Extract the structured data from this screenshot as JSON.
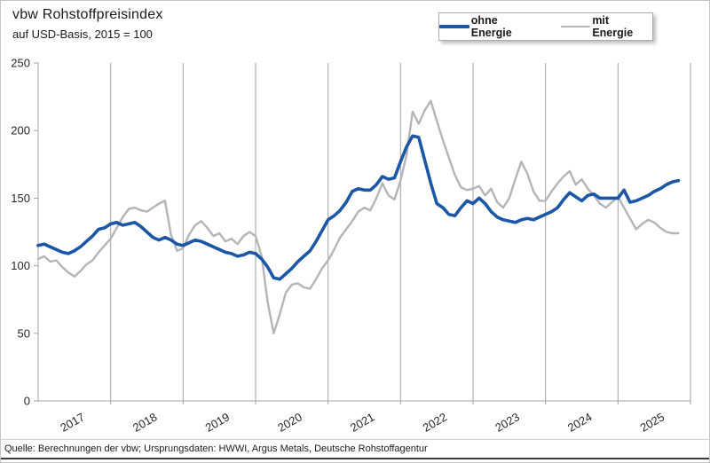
{
  "header": {
    "title": "vbw Rohstoffpreisindex",
    "subtitle": "auf USD-Basis, 2015 = 100"
  },
  "footer": {
    "source": "Quelle: Berechnungen der vbw; Ursprungsdaten: HWWI, Argus Metals, Deutsche Rohstoffagentur"
  },
  "chart_data": {
    "type": "line",
    "title": "vbw Rohstoffpreisindex",
    "subtitle": "auf USD-Basis, 2015 = 100",
    "frequency": "monthly",
    "x_start": "2017-01",
    "x_total_months": 108,
    "x_ticks": [
      "2017",
      "2018",
      "2019",
      "2020",
      "2021",
      "2022",
      "2023",
      "2024",
      "2025"
    ],
    "y_ticks": [
      0,
      50,
      100,
      150,
      200,
      250
    ],
    "ylim": [
      0,
      250
    ],
    "grid": "vertical-yearly",
    "legend_position": "top-right",
    "series": [
      {
        "name": "ohne Energie",
        "color": "#1B57A5",
        "width": 3.6,
        "values": [
          115,
          116,
          114,
          112,
          110,
          109,
          111,
          114,
          118,
          122,
          127,
          128,
          131,
          132,
          130,
          131,
          132,
          129,
          125,
          121,
          119,
          121,
          119,
          116,
          115,
          117,
          119,
          118,
          116,
          114,
          112,
          110,
          109,
          107,
          108,
          110,
          109,
          105,
          99,
          91,
          90,
          94,
          98,
          103,
          107,
          111,
          118,
          126,
          134,
          137,
          141,
          147,
          155,
          157,
          156,
          156,
          160,
          166,
          164,
          165,
          177,
          188,
          196,
          195,
          178,
          161,
          146,
          143,
          138,
          137,
          143,
          148,
          146,
          150,
          146,
          140,
          136,
          134,
          133,
          132,
          134,
          135,
          134,
          136,
          138,
          140,
          143,
          149,
          154,
          151,
          148,
          152,
          153,
          150,
          150,
          150,
          150,
          156,
          147,
          148,
          150,
          152,
          155,
          157,
          160,
          162,
          163
        ]
      },
      {
        "name": "mit Energie",
        "color": "#B2B5B9",
        "width": 2.4,
        "values": [
          105,
          107,
          103,
          104,
          99,
          95,
          92,
          96,
          101,
          104,
          110,
          115,
          120,
          128,
          136,
          142,
          143,
          141,
          140,
          143,
          146,
          148,
          123,
          111,
          113,
          123,
          130,
          133,
          128,
          122,
          124,
          118,
          120,
          116,
          122,
          125,
          122,
          107,
          73,
          50,
          64,
          80,
          86,
          87,
          84,
          83,
          90,
          98,
          104,
          112,
          121,
          127,
          133,
          140,
          143,
          141,
          150,
          161,
          152,
          149,
          163,
          182,
          214,
          205,
          215,
          222,
          207,
          193,
          180,
          167,
          158,
          156,
          157,
          159,
          152,
          157,
          147,
          143,
          150,
          164,
          177,
          168,
          155,
          148,
          148,
          155,
          161,
          166,
          170,
          160,
          164,
          157,
          152,
          146,
          143,
          147,
          151,
          143,
          135,
          127,
          131,
          134,
          132,
          128,
          125,
          124,
          124
        ]
      }
    ]
  }
}
